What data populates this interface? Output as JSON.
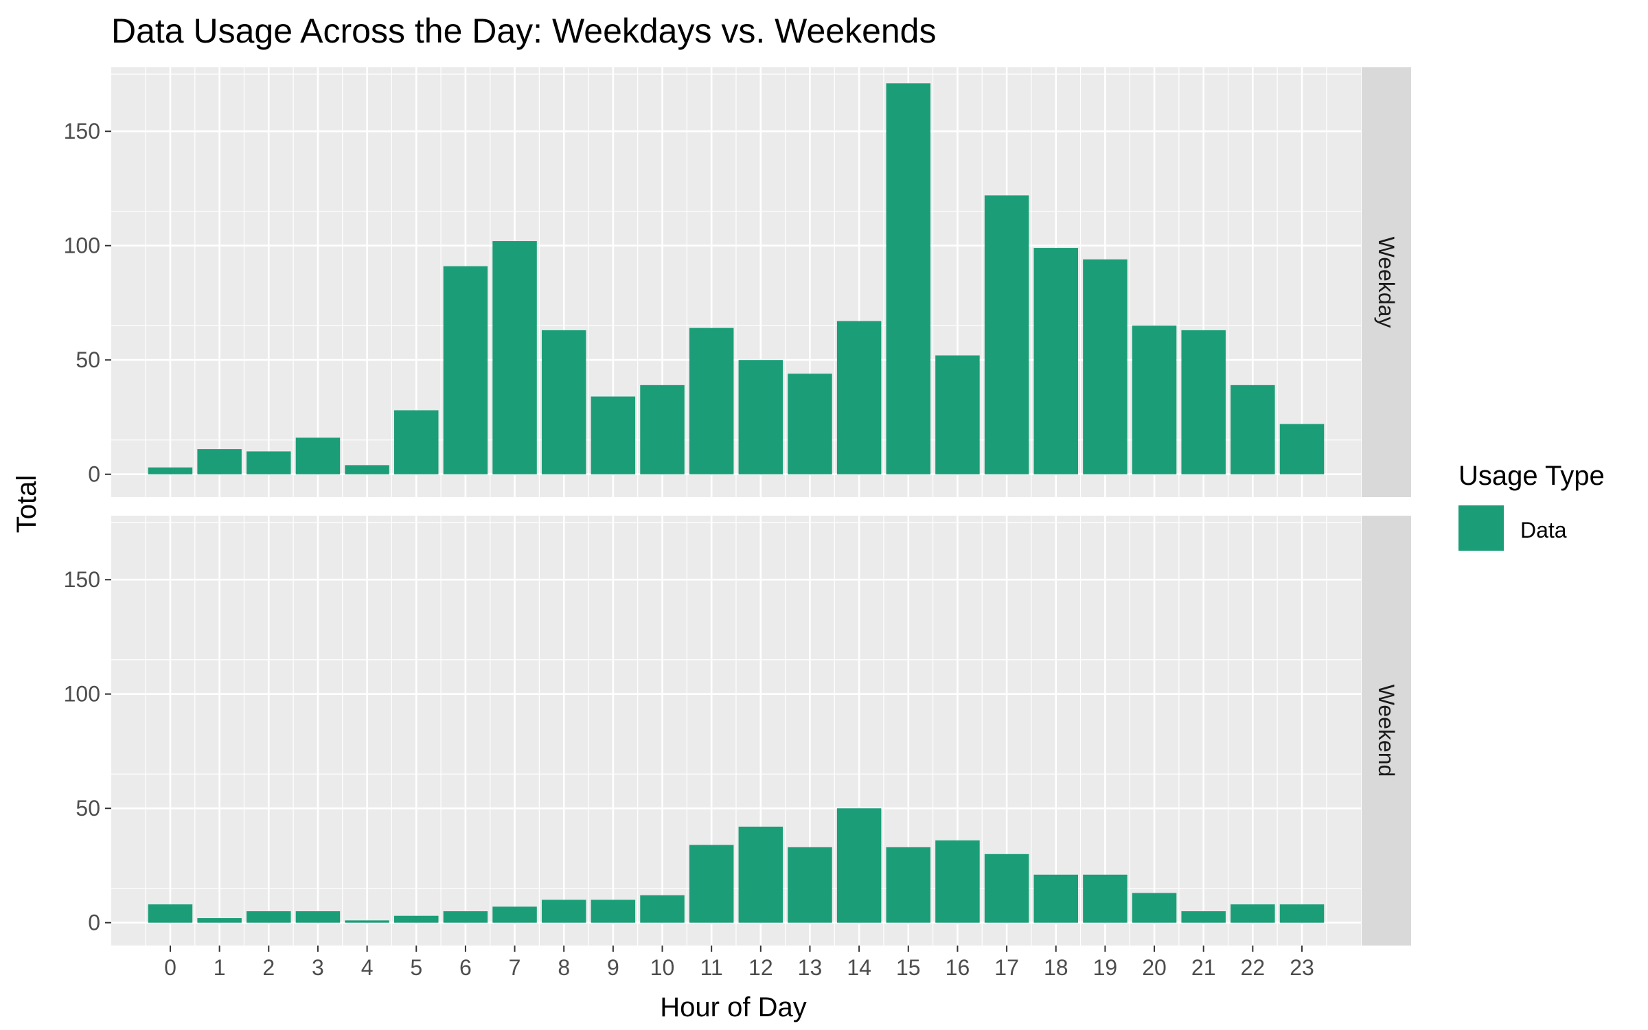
{
  "chart_data": {
    "type": "bar",
    "title": "Data Usage Across the Day: Weekdays vs. Weekends",
    "xlabel": "Hour of Day",
    "ylabel": "Total",
    "categories": [
      "0",
      "1",
      "2",
      "3",
      "4",
      "5",
      "6",
      "7",
      "8",
      "9",
      "10",
      "11",
      "12",
      "13",
      "14",
      "15",
      "16",
      "17",
      "18",
      "19",
      "20",
      "21",
      "22",
      "23"
    ],
    "ylim": [
      -10,
      178
    ],
    "yticks": [
      0,
      50,
      100,
      150
    ],
    "facets": [
      {
        "label": "Weekday",
        "values": [
          3,
          11,
          10,
          16,
          4,
          28,
          91,
          102,
          63,
          34,
          39,
          64,
          50,
          44,
          67,
          171,
          52,
          122,
          99,
          94,
          65,
          63,
          39,
          22
        ]
      },
      {
        "label": "Weekend",
        "values": [
          8,
          2,
          5,
          5,
          1,
          3,
          5,
          7,
          10,
          10,
          12,
          34,
          42,
          33,
          50,
          33,
          36,
          30,
          21,
          21,
          13,
          5,
          8,
          8
        ]
      }
    ],
    "legend": {
      "title": "Usage Type",
      "entries": [
        {
          "label": "Data",
          "color": "#1b9e77"
        }
      ],
      "position": "right"
    },
    "grid": true,
    "colors": {
      "bar": "#1b9e77",
      "panel": "#ebebeb",
      "strip": "#d9d9d9",
      "grid": "#ffffff"
    }
  }
}
